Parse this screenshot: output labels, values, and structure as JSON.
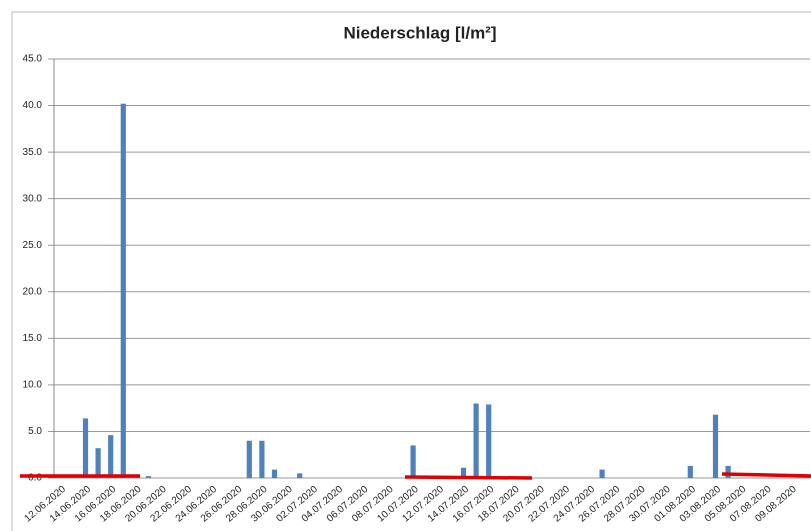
{
  "chart_data": {
    "type": "bar",
    "title": "Niederschlag [l/m²]",
    "categories": [
      "12.06.2020",
      null,
      "14.06.2020",
      null,
      "16.06.2020",
      null,
      "18.06.2020",
      null,
      "20.06.2020",
      null,
      "22.06.2020",
      null,
      "24.06.2020",
      null,
      "26.06.2020",
      null,
      "28.06.2020",
      null,
      "30.06.2020",
      null,
      "02.07.2020",
      null,
      "04.07.2020",
      null,
      "06.07.2020",
      null,
      "08.07.2020",
      null,
      "10.07.2020",
      null,
      "12.07.2020",
      null,
      "14.07.2020",
      null,
      "16.07.2020",
      null,
      "18.07.2020",
      null,
      "20.07.2020",
      null,
      "22.07.2020",
      null,
      "24.07.2020",
      null,
      "26.07.2020",
      null,
      "28.07.2020",
      null,
      "30.07.2020",
      null,
      "01.08.2020",
      null,
      "03.08.2020",
      null,
      "05.08.2020",
      null,
      "07.08.2020",
      null,
      "09.08.2020",
      null
    ],
    "values": [
      0,
      0,
      6.4,
      3.2,
      4.6,
      40.2,
      0,
      0.2,
      0,
      0,
      0,
      0,
      0,
      0,
      0,
      4.0,
      4.0,
      0.9,
      0,
      0.5,
      0,
      0,
      0,
      0,
      0,
      0,
      0,
      0,
      3.5,
      0,
      0,
      0,
      1.1,
      8.0,
      7.9,
      0,
      0,
      0,
      0,
      0,
      0,
      0,
      0,
      0.9,
      0,
      0,
      0,
      0,
      0,
      0,
      1.3,
      0,
      6.8,
      1.3,
      0,
      0,
      0,
      0,
      0,
      0
    ],
    "color": "#4f81bd",
    "ylim": [
      0,
      45
    ],
    "yticks": [
      {
        "value": 0,
        "label": "0.0"
      },
      {
        "value": 5,
        "label": "5.0"
      },
      {
        "value": 10,
        "label": "10.0"
      },
      {
        "value": 15,
        "label": "15.0"
      },
      {
        "value": 20,
        "label": "20.0"
      },
      {
        "value": 25,
        "label": "25.0"
      },
      {
        "value": 30,
        "label": "30.0"
      },
      {
        "value": 35,
        "label": "35.0"
      },
      {
        "value": 40,
        "label": "40.0"
      },
      {
        "value": 45,
        "label": "45.0"
      }
    ],
    "grid": true
  }
}
